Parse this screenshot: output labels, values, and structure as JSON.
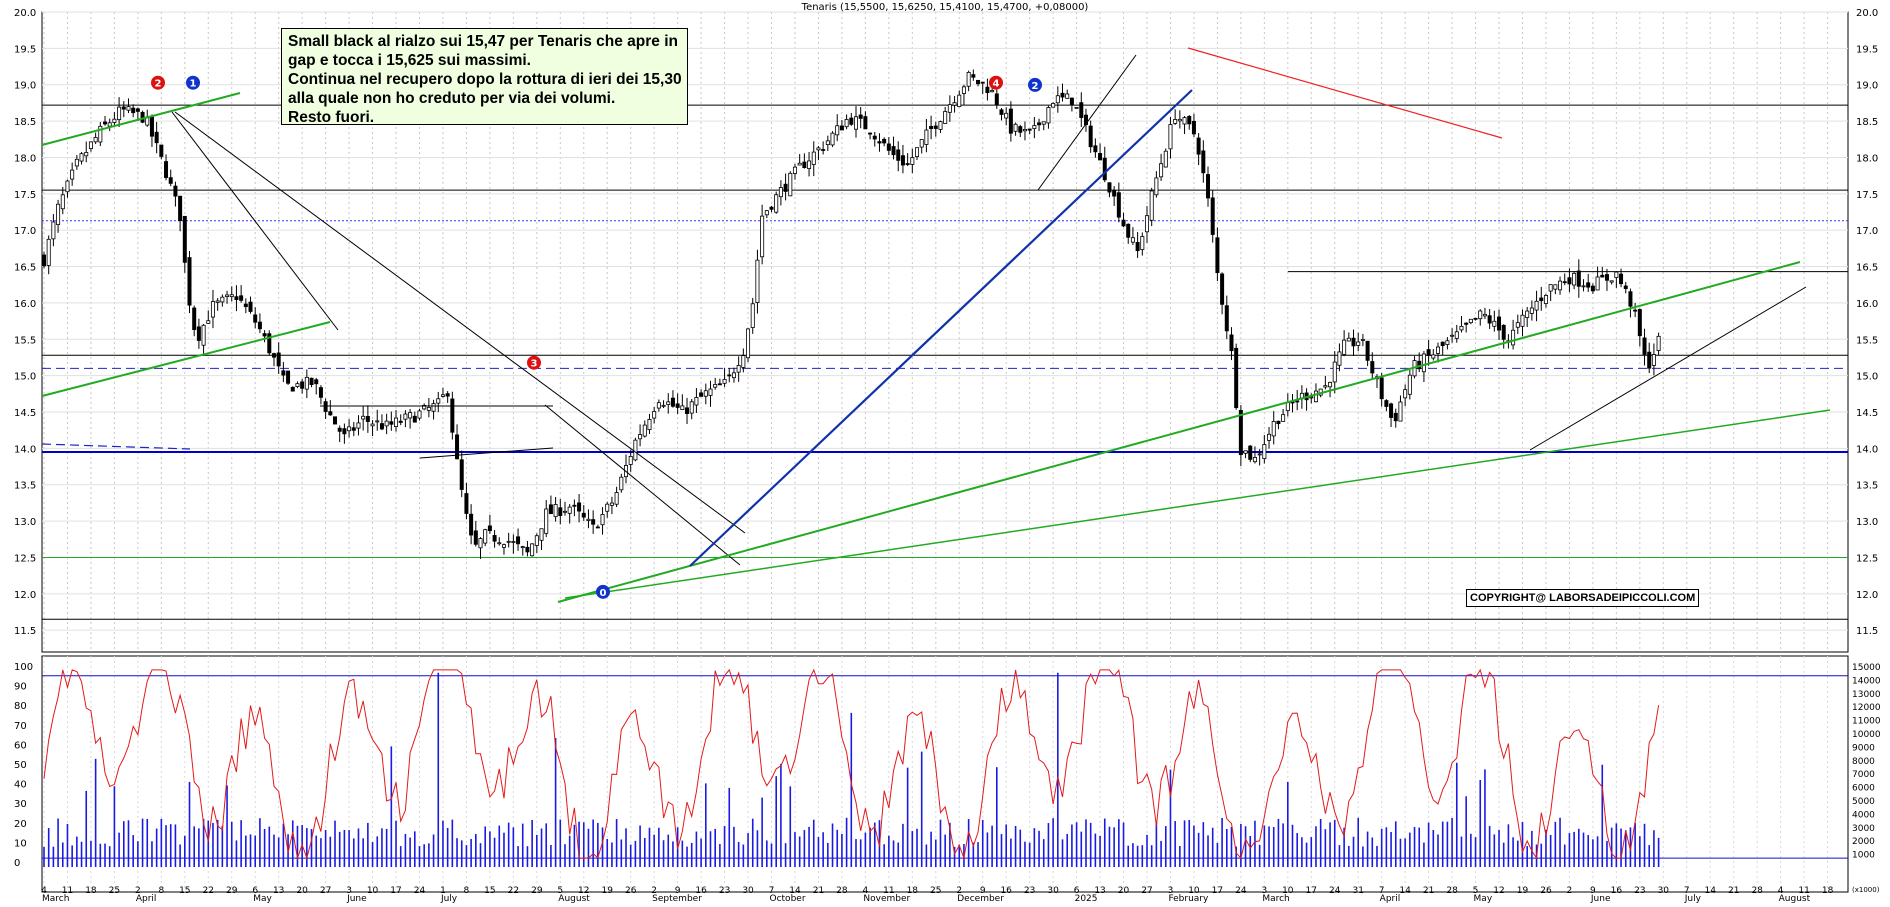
{
  "chart_data": [
    {
      "type": "candlestick",
      "title": "Tenaris (15,5500, 15,6250, 15,4100, 15,4700, +0,08000)",
      "symbol": "Tenaris",
      "ohlc": {
        "open": 15.55,
        "high": 15.625,
        "low": 15.41,
        "close": 15.47,
        "change": 0.08
      },
      "ylim": [
        11.2,
        20.0
      ],
      "y_ticks": [
        "20.0",
        "19.5",
        "19.0",
        "18.5",
        "18.0",
        "17.5",
        "17.0",
        "16.5",
        "16.0",
        "15.5",
        "15.0",
        "14.5",
        "14.0",
        "13.5",
        "13.0",
        "12.5",
        "12.0",
        "11.5"
      ],
      "x_labels": [
        "4",
        "11",
        "18",
        "25",
        "2",
        "8",
        "15",
        "22",
        "29",
        "6",
        "13",
        "20",
        "27",
        "3",
        "10",
        "17",
        "24",
        "1",
        "8",
        "15",
        "22",
        "29",
        "5",
        "12",
        "19",
        "26",
        "2",
        "9",
        "16",
        "23",
        "30",
        "7",
        "14",
        "21",
        "28",
        "4",
        "11",
        "18",
        "25",
        "2",
        "9",
        "16",
        "23",
        "30",
        "6",
        "13",
        "20",
        "27",
        "3",
        "10",
        "17",
        "24",
        "3",
        "10",
        "17",
        "24",
        "31",
        "7",
        "14",
        "21",
        "28",
        "5",
        "12",
        "19",
        "26",
        "2",
        "9",
        "16",
        "23",
        "30",
        "7",
        "14",
        "21",
        "28",
        "4",
        "11",
        "18"
      ],
      "month_labels": [
        "March",
        "April",
        "May",
        "June",
        "July",
        "August",
        "September",
        "October",
        "November",
        "December",
        "2025",
        "February",
        "March",
        "April",
        "May",
        "June",
        "July",
        "August"
      ],
      "key_prices": [
        {
          "price": 18.72,
          "color": "#000000"
        },
        {
          "price": 17.55,
          "color": "#000000"
        },
        {
          "price": 17.13,
          "color": "#3333ff",
          "style": "dotted"
        },
        {
          "price": 16.43,
          "color": "#000000",
          "from": "2025-03-10"
        },
        {
          "price": 15.28,
          "color": "#000000"
        },
        {
          "price": 15.1,
          "color": "#2222cc",
          "style": "dashed"
        },
        {
          "price": 13.95,
          "color": "#0000cc",
          "width": 2
        },
        {
          "price": 12.5,
          "color": "#22aa22"
        },
        {
          "price": 11.65,
          "color": "#000000"
        }
      ],
      "wave_labels": [
        {
          "text": "2",
          "color": "#dd1111",
          "price": 19.0,
          "date": "2024-03-28"
        },
        {
          "text": "1",
          "color": "#1133cc",
          "price": 19.0,
          "date": "2024-04-10"
        },
        {
          "text": "4",
          "color": "#dd1111",
          "price": 19.0,
          "date": "2024-12-02"
        },
        {
          "text": "2",
          "color": "#1133cc",
          "price": 18.97,
          "date": "2024-12-13"
        },
        {
          "text": "3",
          "color": "#dd1111",
          "price": 15.15,
          "date": "2024-07-25"
        },
        {
          "text": "0",
          "color": "#1133cc",
          "price": 12.0,
          "date": "2024-08-08"
        }
      ],
      "note": {
        "lines": [
          "Small black al rialzo sui 15,47 per Tenaris che apre in",
          "gap e tocca i 15,625 sui massimi.",
          "Continua nel recupero dopo la rottura di ieri dei 15,30",
          "alla quale non ho creduto per via dei volumi.",
          "Resto fuori."
        ]
      },
      "copyright": "COPYRIGHT@ LABORSADEIPICCOLI.COM"
    },
    {
      "type": "line+bar",
      "name": "oscillator and volume",
      "left_ticks": [
        "100",
        "90",
        "80",
        "70",
        "60",
        "50",
        "40",
        "30",
        "20",
        "10",
        "0"
      ],
      "left_ylim": [
        0,
        100
      ],
      "right_ticks": [
        "15000",
        "14000",
        "13000",
        "12000",
        "11000",
        "10000",
        "9000",
        "8000",
        "7000",
        "6000",
        "5000",
        "4000",
        "3000",
        "2000",
        "1000"
      ],
      "right_unit": "(x1000)",
      "right_ylim": [
        0,
        15000
      ],
      "reference_levels": [
        95,
        2
      ],
      "oscillator_last": 80,
      "series_colors": {
        "oscillator": "#e31a1a",
        "volume": "#1a1ae3"
      }
    }
  ]
}
